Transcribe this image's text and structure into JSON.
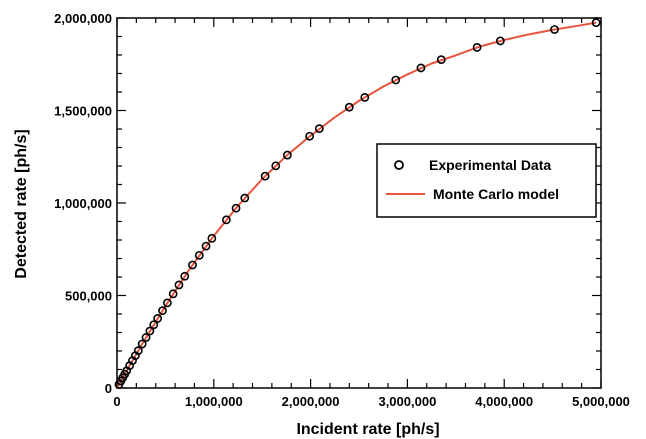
{
  "chart_data": {
    "type": "scatter",
    "title": "",
    "xlabel": "Incident rate [ph/s]",
    "ylabel": "Detected rate [ph/s]",
    "xlim": [
      0,
      5000000
    ],
    "ylim": [
      0,
      2000000
    ],
    "x_ticks": [
      0,
      1000000,
      2000000,
      3000000,
      4000000,
      5000000
    ],
    "x_tick_labels": [
      "0",
      "1,000,000",
      "2,000,000",
      "3,000,000",
      "4,000,000",
      "5,000,000"
    ],
    "y_ticks": [
      0,
      500000,
      1000000,
      1500000,
      2000000
    ],
    "y_tick_labels": [
      "0",
      "500,000",
      "1,000,000",
      "1,500,000",
      "2,000,000"
    ],
    "grid": false,
    "legend_position": "center-right",
    "series": [
      {
        "name": "Experimental Data",
        "kind": "scatter",
        "marker": "open-circle",
        "color": "#000000",
        "points": [
          [
            20000,
            19000
          ],
          [
            40000,
            38000
          ],
          [
            60000,
            56000
          ],
          [
            80000,
            75000
          ],
          [
            100000,
            93000
          ],
          [
            130000,
            121000
          ],
          [
            160000,
            148000
          ],
          [
            190000,
            175000
          ],
          [
            220000,
            202000
          ],
          [
            260000,
            238000
          ],
          [
            300000,
            273000
          ],
          [
            340000,
            308000
          ],
          [
            380000,
            342000
          ],
          [
            420000,
            376000
          ],
          [
            470000,
            418000
          ],
          [
            520000,
            460000
          ],
          [
            580000,
            509000
          ],
          [
            640000,
            557000
          ],
          [
            700000,
            604000
          ],
          [
            780000,
            665000
          ],
          [
            850000,
            717000
          ],
          [
            920000,
            767000
          ],
          [
            980000,
            809000
          ],
          [
            1130000,
            909000
          ],
          [
            1230000,
            972000
          ],
          [
            1320000,
            1027000
          ],
          [
            1530000,
            1145000
          ],
          [
            1640000,
            1201000
          ],
          [
            1760000,
            1259000
          ],
          [
            1990000,
            1361000
          ],
          [
            2090000,
            1402000
          ],
          [
            2400000,
            1518000
          ],
          [
            2560000,
            1571000
          ],
          [
            2880000,
            1665000
          ],
          [
            3140000,
            1730000
          ],
          [
            3350000,
            1775000
          ],
          [
            3720000,
            1841000
          ],
          [
            3960000,
            1876000
          ],
          [
            4520000,
            1938000
          ],
          [
            4950000,
            1975000
          ]
        ]
      },
      {
        "name": "Monte Carlo model",
        "kind": "line",
        "color": "#e8553f",
        "points": [
          [
            0,
            0
          ],
          [
            100000,
            93000
          ],
          [
            250000,
            229000
          ],
          [
            500000,
            443000
          ],
          [
            750000,
            643000
          ],
          [
            1000000,
            822000
          ],
          [
            1250000,
            985000
          ],
          [
            1500000,
            1129000
          ],
          [
            1750000,
            1255000
          ],
          [
            2000000,
            1364000
          ],
          [
            2250000,
            1463000
          ],
          [
            2500000,
            1552000
          ],
          [
            2750000,
            1629000
          ],
          [
            3000000,
            1695000
          ],
          [
            3250000,
            1754000
          ],
          [
            3500000,
            1798000
          ],
          [
            3750000,
            1846000
          ],
          [
            4000000,
            1881000
          ],
          [
            4250000,
            1911000
          ],
          [
            4500000,
            1936000
          ],
          [
            4750000,
            1957000
          ],
          [
            4950000,
            1975000
          ]
        ]
      }
    ]
  }
}
